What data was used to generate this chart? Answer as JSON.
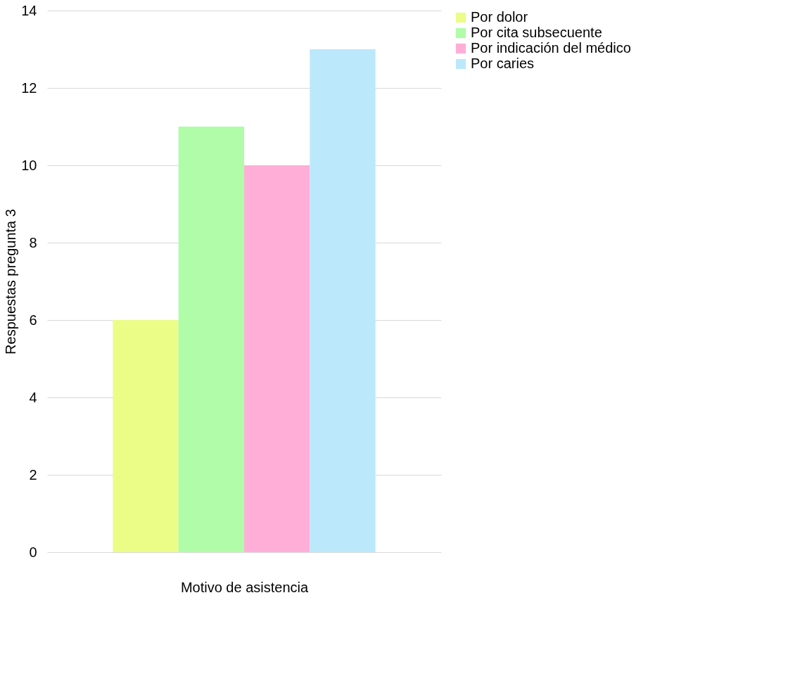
{
  "chart_data": {
    "type": "bar",
    "xlabel": "Motivo de asistencia",
    "ylabel": "Respuestas pregunta 3",
    "categories": [
      null
    ],
    "series": [
      {
        "name": "Por dolor",
        "color": "#ebfd87",
        "values": [
          6
        ]
      },
      {
        "name": "Por cita subsecuente",
        "color": "#b0fca9",
        "values": [
          11
        ]
      },
      {
        "name": "Por indicación del médico",
        "color": "#ffafd7",
        "values": [
          10
        ]
      },
      {
        "name": "Por caries",
        "color": "#bce8fc",
        "values": [
          13
        ]
      }
    ],
    "ylim": [
      0,
      14
    ],
    "yticks": [
      0,
      2,
      4,
      6,
      8,
      10,
      12,
      14
    ],
    "grid": "y",
    "legend": "right",
    "tick_labels": "y"
  }
}
